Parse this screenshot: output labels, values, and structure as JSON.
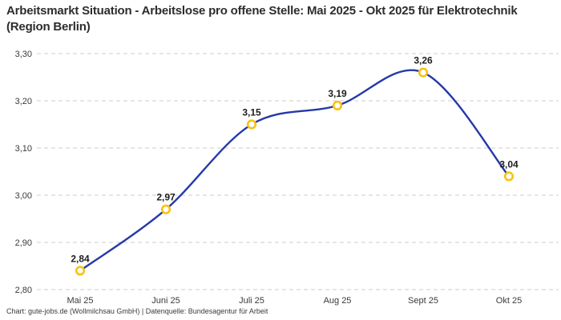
{
  "title": "Arbeitsmarkt Situation - Arbeitslose pro offene Stelle: Mai 2025 - Okt 2025 für Elektrotechnik (Region Berlin)",
  "footer": "Chart: gute-jobs.de (Wollmilchsau GmbH) | Datenquelle: Bundesagentur für Arbeit",
  "chart_data": {
    "type": "line",
    "title": "Arbeitsmarkt Situation - Arbeitslose pro offene Stelle: Mai 2025 - Okt 2025 für Elektrotechnik (Region Berlin)",
    "categories": [
      "Mai 25",
      "Juni 25",
      "Juli 25",
      "Aug 25",
      "Sept 25",
      "Okt 25"
    ],
    "values": [
      2.84,
      2.97,
      3.15,
      3.19,
      3.26,
      3.04
    ],
    "value_labels": [
      "2,84",
      "2,97",
      "3,15",
      "3,19",
      "3,26",
      "3,04"
    ],
    "xlabel": "",
    "ylabel": "",
    "ylim": [
      2.8,
      3.3
    ],
    "y_ticks": [
      {
        "label": "3,30",
        "value": 3.3
      },
      {
        "label": "3,20",
        "value": 3.2
      },
      {
        "label": "3,10",
        "value": 3.1
      },
      {
        "label": "3,00",
        "value": 3.0
      },
      {
        "label": "2,90",
        "value": 2.9
      },
      {
        "label": "2,80",
        "value": 2.8
      }
    ],
    "grid": "horizontal-dashed",
    "legend": "none",
    "line_style": "smooth",
    "marker": "open-circle",
    "colors": {
      "line": "#2539a8",
      "marker_stroke": "#f8c211",
      "marker_fill": "#ffffff",
      "grid": "#cccccc",
      "axis_text": "#3a3a3a",
      "value_label_text": "#1d1d1d",
      "title_text": "#2d2d2d"
    }
  }
}
